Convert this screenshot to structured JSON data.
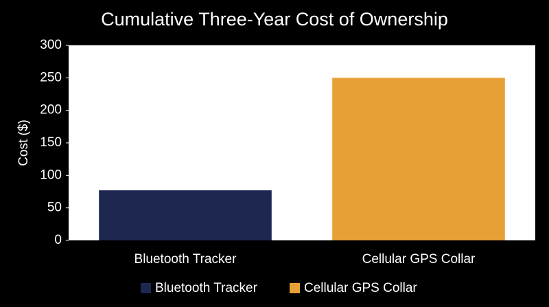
{
  "chart_data": {
    "type": "bar",
    "title": "Cumulative Three-Year Cost of Ownership",
    "y_label": "Cost ($)",
    "categories": [
      "Bluetooth Tracker",
      "Cellular GPS Collar"
    ],
    "values": [
      77,
      250
    ],
    "colors": [
      "#1e2750",
      "#e6a035"
    ],
    "ylim": [
      0,
      300
    ],
    "yticks": [
      0,
      50,
      100,
      150,
      200,
      250,
      300
    ],
    "legend": "bottom"
  }
}
